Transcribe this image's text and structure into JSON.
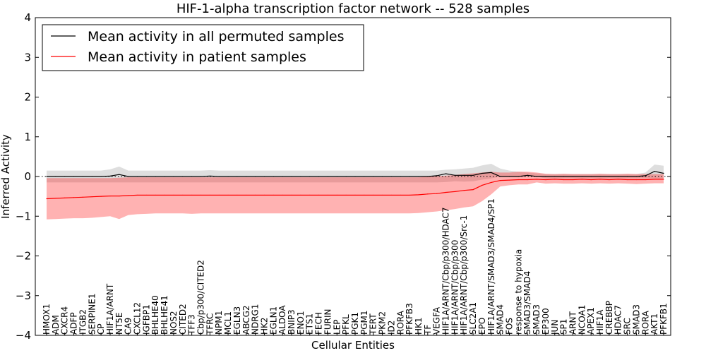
{
  "chart_data": {
    "type": "line",
    "title": "HIF-1-alpha transcription factor network -- 528 samples",
    "xlabel": "Cellular Entities",
    "ylabel": "Inferred Activity",
    "ylim": [
      -4,
      4
    ],
    "yticks": [
      -4,
      -3,
      -2,
      -1,
      0,
      1,
      2,
      3,
      4
    ],
    "yticklabels": [
      "−4",
      "−3",
      "−2",
      "−1",
      "0",
      "1",
      "2",
      "3",
      "4"
    ],
    "legend_position": "top-left",
    "categories": [
      "HMOX1",
      "ADM",
      "CXCR4",
      "ADFP",
      "ITGB2",
      "SERPINE1",
      "CP",
      "HIF1A/ARNT",
      "NT5E",
      "CA9",
      "CXCL12",
      "IGFBP1",
      "BHLHE40",
      "BHLHE41",
      "NOS2",
      "CITED2",
      "TFF3",
      "Cbp/p300/CITED2",
      "TFRC",
      "NPM1",
      "MCL1",
      "EGLN3",
      "ABCG2",
      "NDRG1",
      "HK2",
      "EGLN1",
      "ALDOA",
      "BNIP3",
      "ENO1",
      "ETS1",
      "FECH",
      "FURIN",
      "LEP",
      "PFKL",
      "PGK1",
      "PGM1",
      "TERT",
      "PKM2",
      "ID2",
      "RORA",
      "PFKFB3",
      "HK1",
      "TF",
      "VEGFA",
      "HIF1A/ARNT/Cbp/p300/HDAC7",
      "HIF1A/ARNT/Cbp/p300",
      "HIF1A/ARNT/Cbp/p300/Src-1",
      "SLC2A1",
      "EPO",
      "HIF1A/ARNT/SMAD3/SMAD4/SP1",
      "SMAD4",
      "FOS",
      "response to hypoxia",
      "SMAD3/SMAD4",
      "SMAD3",
      "EP300",
      "JUN",
      "SP1",
      "ARNT",
      "NCOA1",
      "APEX1",
      "HIF1A",
      "CREBBP",
      "HDAC7",
      "SRC",
      "SMAD3",
      "RORA",
      "AKT1",
      "PFKFB1"
    ],
    "series": [
      {
        "name": "Mean activity in all permuted samples",
        "color": "#000000",
        "values": [
          0,
          0,
          0,
          0,
          0,
          0,
          0,
          0.01,
          0.05,
          0,
          0,
          0,
          0,
          0,
          0,
          0,
          0,
          0,
          0.01,
          0,
          0,
          0,
          0,
          0,
          0,
          0,
          0,
          0,
          0,
          0,
          0,
          0,
          0,
          0,
          0,
          0,
          0,
          0,
          0,
          0,
          0,
          0,
          0,
          0.02,
          0.07,
          0.03,
          0.03,
          0.03,
          0.08,
          0.1,
          0,
          0,
          0,
          0.03,
          0,
          0,
          0,
          0,
          0,
          0,
          0,
          0,
          0,
          0,
          0,
          0,
          0.02,
          0.13,
          0.08
        ],
        "band": [
          [
            -0.15,
            0.15
          ],
          [
            -0.15,
            0.15
          ],
          [
            -0.15,
            0.15
          ],
          [
            -0.15,
            0.15
          ],
          [
            -0.15,
            0.15
          ],
          [
            -0.15,
            0.15
          ],
          [
            -0.15,
            0.15
          ],
          [
            -0.15,
            0.18
          ],
          [
            -0.15,
            0.25
          ],
          [
            -0.15,
            0.15
          ],
          [
            -0.15,
            0.15
          ],
          [
            -0.15,
            0.15
          ],
          [
            -0.15,
            0.15
          ],
          [
            -0.15,
            0.15
          ],
          [
            -0.15,
            0.15
          ],
          [
            -0.15,
            0.15
          ],
          [
            -0.15,
            0.15
          ],
          [
            -0.15,
            0.15
          ],
          [
            -0.15,
            0.16
          ],
          [
            -0.15,
            0.15
          ],
          [
            -0.15,
            0.15
          ],
          [
            -0.15,
            0.15
          ],
          [
            -0.15,
            0.15
          ],
          [
            -0.15,
            0.15
          ],
          [
            -0.15,
            0.15
          ],
          [
            -0.15,
            0.15
          ],
          [
            -0.15,
            0.15
          ],
          [
            -0.15,
            0.15
          ],
          [
            -0.15,
            0.15
          ],
          [
            -0.15,
            0.15
          ],
          [
            -0.15,
            0.15
          ],
          [
            -0.15,
            0.15
          ],
          [
            -0.15,
            0.15
          ],
          [
            -0.15,
            0.15
          ],
          [
            -0.15,
            0.15
          ],
          [
            -0.15,
            0.15
          ],
          [
            -0.15,
            0.15
          ],
          [
            -0.15,
            0.15
          ],
          [
            -0.15,
            0.15
          ],
          [
            -0.15,
            0.15
          ],
          [
            -0.15,
            0.15
          ],
          [
            -0.15,
            0.15
          ],
          [
            -0.15,
            0.15
          ],
          [
            -0.15,
            0.15
          ],
          [
            -0.14,
            0.17
          ],
          [
            -0.12,
            0.18
          ],
          [
            -0.13,
            0.2
          ],
          [
            -0.12,
            0.22
          ],
          [
            -0.08,
            0.28
          ],
          [
            -0.05,
            0.32
          ],
          [
            0,
            0.2
          ],
          [
            0,
            0.15
          ],
          [
            0,
            0.12
          ],
          [
            0,
            0.1
          ],
          [
            0,
            0.08
          ],
          [
            -0.05,
            0.06
          ],
          [
            -0.05,
            0.06
          ],
          [
            -0.05,
            0.06
          ],
          [
            -0.05,
            0.06
          ],
          [
            -0.05,
            0.06
          ],
          [
            -0.05,
            0.06
          ],
          [
            -0.05,
            0.06
          ],
          [
            -0.05,
            0.06
          ],
          [
            -0.05,
            0.06
          ],
          [
            -0.05,
            0.06
          ],
          [
            -0.05,
            0.06
          ],
          [
            -0.05,
            0.1
          ],
          [
            -0.05,
            0.3
          ],
          [
            -0.05,
            0.27
          ]
        ]
      },
      {
        "name": "Mean activity in patient samples",
        "color": "#ff0000",
        "values": [
          -0.56,
          -0.55,
          -0.54,
          -0.53,
          -0.52,
          -0.51,
          -0.5,
          -0.49,
          -0.49,
          -0.48,
          -0.47,
          -0.47,
          -0.47,
          -0.47,
          -0.47,
          -0.47,
          -0.47,
          -0.47,
          -0.47,
          -0.47,
          -0.47,
          -0.47,
          -0.47,
          -0.47,
          -0.47,
          -0.47,
          -0.47,
          -0.47,
          -0.47,
          -0.47,
          -0.47,
          -0.47,
          -0.47,
          -0.47,
          -0.47,
          -0.47,
          -0.47,
          -0.47,
          -0.47,
          -0.47,
          -0.47,
          -0.46,
          -0.44,
          -0.43,
          -0.4,
          -0.38,
          -0.35,
          -0.33,
          -0.22,
          -0.15,
          -0.1,
          -0.09,
          -0.08,
          -0.08,
          -0.07,
          -0.08,
          -0.07,
          -0.08,
          -0.08,
          -0.07,
          -0.08,
          -0.07,
          -0.08,
          -0.07,
          -0.08,
          -0.08,
          -0.08,
          -0.07,
          -0.07
        ],
        "band": [
          [
            -1.08,
            -0.04
          ],
          [
            -1.07,
            -0.04
          ],
          [
            -1.06,
            -0.04
          ],
          [
            -1.05,
            -0.04
          ],
          [
            -1.05,
            -0.04
          ],
          [
            -1.04,
            -0.04
          ],
          [
            -1.02,
            -0.04
          ],
          [
            -1.0,
            -0.04
          ],
          [
            -1.07,
            -0.03
          ],
          [
            -0.97,
            -0.02
          ],
          [
            -0.95,
            -0.02
          ],
          [
            -0.94,
            -0.02
          ],
          [
            -0.93,
            -0.02
          ],
          [
            -0.93,
            -0.02
          ],
          [
            -0.93,
            -0.02
          ],
          [
            -0.93,
            -0.02
          ],
          [
            -0.94,
            -0.02
          ],
          [
            -0.93,
            -0.02
          ],
          [
            -0.93,
            -0.02
          ],
          [
            -0.93,
            -0.02
          ],
          [
            -0.93,
            -0.02
          ],
          [
            -0.93,
            -0.02
          ],
          [
            -0.93,
            -0.02
          ],
          [
            -0.93,
            -0.02
          ],
          [
            -0.93,
            -0.02
          ],
          [
            -0.93,
            -0.02
          ],
          [
            -0.93,
            -0.02
          ],
          [
            -0.93,
            -0.02
          ],
          [
            -0.93,
            -0.02
          ],
          [
            -0.93,
            -0.02
          ],
          [
            -0.93,
            -0.02
          ],
          [
            -0.93,
            -0.02
          ],
          [
            -0.93,
            -0.02
          ],
          [
            -0.93,
            -0.02
          ],
          [
            -0.93,
            -0.02
          ],
          [
            -0.93,
            -0.02
          ],
          [
            -0.93,
            -0.02
          ],
          [
            -0.93,
            -0.02
          ],
          [
            -0.93,
            -0.02
          ],
          [
            -0.93,
            -0.02
          ],
          [
            -0.93,
            -0.02
          ],
          [
            -0.92,
            -0.02
          ],
          [
            -0.9,
            0.0
          ],
          [
            -0.88,
            0.01
          ],
          [
            -0.85,
            0.02
          ],
          [
            -0.82,
            0.04
          ],
          [
            -0.78,
            0.06
          ],
          [
            -0.75,
            0.08
          ],
          [
            -0.62,
            0.1
          ],
          [
            -0.45,
            0.12
          ],
          [
            -0.25,
            0.1
          ],
          [
            -0.22,
            0.1
          ],
          [
            -0.2,
            0.12
          ],
          [
            -0.2,
            0.12
          ],
          [
            -0.15,
            0.1
          ],
          [
            -0.18,
            0.07
          ],
          [
            -0.17,
            0.06
          ],
          [
            -0.18,
            0.07
          ],
          [
            -0.18,
            0.06
          ],
          [
            -0.17,
            0.06
          ],
          [
            -0.18,
            0.06
          ],
          [
            -0.17,
            0.07
          ],
          [
            -0.18,
            0.06
          ],
          [
            -0.17,
            0.06
          ],
          [
            -0.18,
            0.07
          ],
          [
            -0.19,
            0.06
          ],
          [
            -0.18,
            0.06
          ],
          [
            -0.17,
            0.06
          ],
          [
            -0.17,
            0.06
          ]
        ]
      }
    ]
  }
}
